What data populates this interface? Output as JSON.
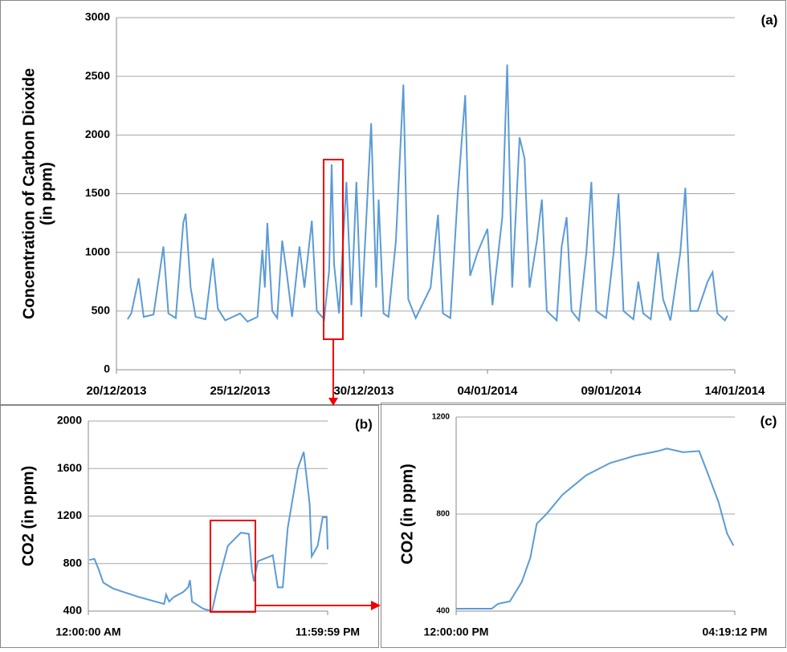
{
  "chart_data": [
    {
      "type": "line",
      "label": "(a)",
      "ylabel": [
        "Concentration of Carbon Dioxide",
        "(in ppm)"
      ],
      "color": "#5b9bd5",
      "grid": true,
      "xlim": [
        0,
        25
      ],
      "xticks": [
        {
          "value": 0,
          "label": "20/12/2013"
        },
        {
          "value": 5,
          "label": "25/12/2013"
        },
        {
          "value": 10,
          "label": "30/12/2013"
        },
        {
          "value": 15,
          "label": "04/01/2014"
        },
        {
          "value": 20,
          "label": "09/01/2014"
        },
        {
          "value": 25,
          "label": "14/01/2014"
        }
      ],
      "ylim": [
        0,
        3000
      ],
      "yticks": [
        0,
        500,
        1000,
        1500,
        2000,
        2500,
        3000
      ],
      "x": [
        0.45,
        0.6,
        0.9,
        1.1,
        1.5,
        1.9,
        2.1,
        2.4,
        2.7,
        2.8,
        3.0,
        3.2,
        3.6,
        3.9,
        4.1,
        4.4,
        5.0,
        5.3,
        5.7,
        5.9,
        6.0,
        6.1,
        6.3,
        6.5,
        6.7,
        6.9,
        7.1,
        7.4,
        7.6,
        7.9,
        8.1,
        8.4,
        8.6,
        8.7,
        8.8,
        9.0,
        9.3,
        9.5,
        9.7,
        9.9,
        10.3,
        10.5,
        10.6,
        10.8,
        11.0,
        11.3,
        11.6,
        11.8,
        12.1,
        12.7,
        13.0,
        13.2,
        13.5,
        13.8,
        14.1,
        14.3,
        14.6,
        15.0,
        15.2,
        15.6,
        15.8,
        16.0,
        16.3,
        16.5,
        16.7,
        17.0,
        17.2,
        17.4,
        17.8,
        18.0,
        18.2,
        18.4,
        18.7,
        19.0,
        19.2,
        19.4,
        19.8,
        20.1,
        20.3,
        20.5,
        20.9,
        21.1,
        21.3,
        21.6,
        21.9,
        22.1,
        22.4,
        22.8,
        23.0,
        23.2,
        23.5,
        23.9,
        24.1,
        24.3,
        24.6,
        24.7
      ],
      "values": [
        430,
        480,
        780,
        450,
        470,
        1050,
        480,
        440,
        1250,
        1330,
        700,
        450,
        430,
        950,
        520,
        420,
        480,
        410,
        450,
        1020,
        700,
        1250,
        500,
        440,
        1100,
        800,
        450,
        1050,
        700,
        1270,
        500,
        430,
        850,
        1750,
        900,
        480,
        1600,
        550,
        1600,
        450,
        2100,
        700,
        1450,
        480,
        450,
        1100,
        2430,
        600,
        440,
        700,
        1320,
        480,
        440,
        1500,
        2340,
        800,
        1000,
        1200,
        550,
        1300,
        2600,
        700,
        1980,
        1800,
        700,
        1100,
        1450,
        500,
        420,
        1050,
        1300,
        500,
        420,
        1000,
        1600,
        500,
        440,
        1000,
        1500,
        500,
        430,
        750,
        480,
        430,
        1000,
        600,
        420,
        1000,
        1550,
        500,
        500,
        750,
        830,
        480,
        420,
        460
      ]
    },
    {
      "type": "line",
      "label": "(b)",
      "ylabel": [
        "CO2 (in ppm)"
      ],
      "color": "#5b9bd5",
      "grid": true,
      "xlim": [
        0,
        24
      ],
      "xticks": [
        {
          "value": 0,
          "label": "12:00:00 AM"
        },
        {
          "value": 24,
          "label": "11:59:59 PM"
        }
      ],
      "ylim": [
        400,
        2000
      ],
      "yticks": [
        400,
        800,
        1200,
        1600,
        2000
      ],
      "x": [
        0.1,
        0.6,
        1.0,
        1.5,
        2.5,
        5,
        7.6,
        7.8,
        8.1,
        8.6,
        9.5,
        10,
        10.2,
        10.4,
        11.5,
        12.4,
        13.2,
        14,
        15.3,
        16.1,
        16.4,
        16.6,
        17,
        18.5,
        19,
        19.5,
        20,
        21,
        21.6,
        22.2,
        22.4,
        23,
        23.5,
        23.9,
        24
      ],
      "values": [
        830,
        840,
        760,
        640,
        590,
        520,
        460,
        540,
        480,
        520,
        560,
        600,
        660,
        480,
        420,
        400,
        700,
        950,
        1060,
        1050,
        750,
        650,
        820,
        870,
        600,
        600,
        1100,
        1600,
        1740,
        1300,
        860,
        950,
        1190,
        1190,
        920
      ]
    },
    {
      "type": "line",
      "label": "(c)",
      "ylabel": [
        "CO2 (in ppm)"
      ],
      "color": "#5b9bd5",
      "grid": true,
      "xlim": [
        0,
        259.2
      ],
      "xticks": [
        {
          "value": 0,
          "label": "12:00:00 PM"
        },
        {
          "value": 259.2,
          "label": "04:19:12 PM"
        }
      ],
      "ylim": [
        400,
        1200
      ],
      "yticks": [
        400,
        800,
        1200
      ],
      "x": [
        0,
        33,
        39,
        50,
        61,
        69,
        75,
        84,
        99,
        121,
        143,
        166,
        188,
        196,
        211,
        226,
        233,
        244,
        252,
        258
      ],
      "values": [
        410,
        410,
        430,
        440,
        520,
        620,
        760,
        800,
        880,
        960,
        1010,
        1040,
        1060,
        1070,
        1055,
        1060,
        980,
        850,
        720,
        670
      ]
    }
  ]
}
